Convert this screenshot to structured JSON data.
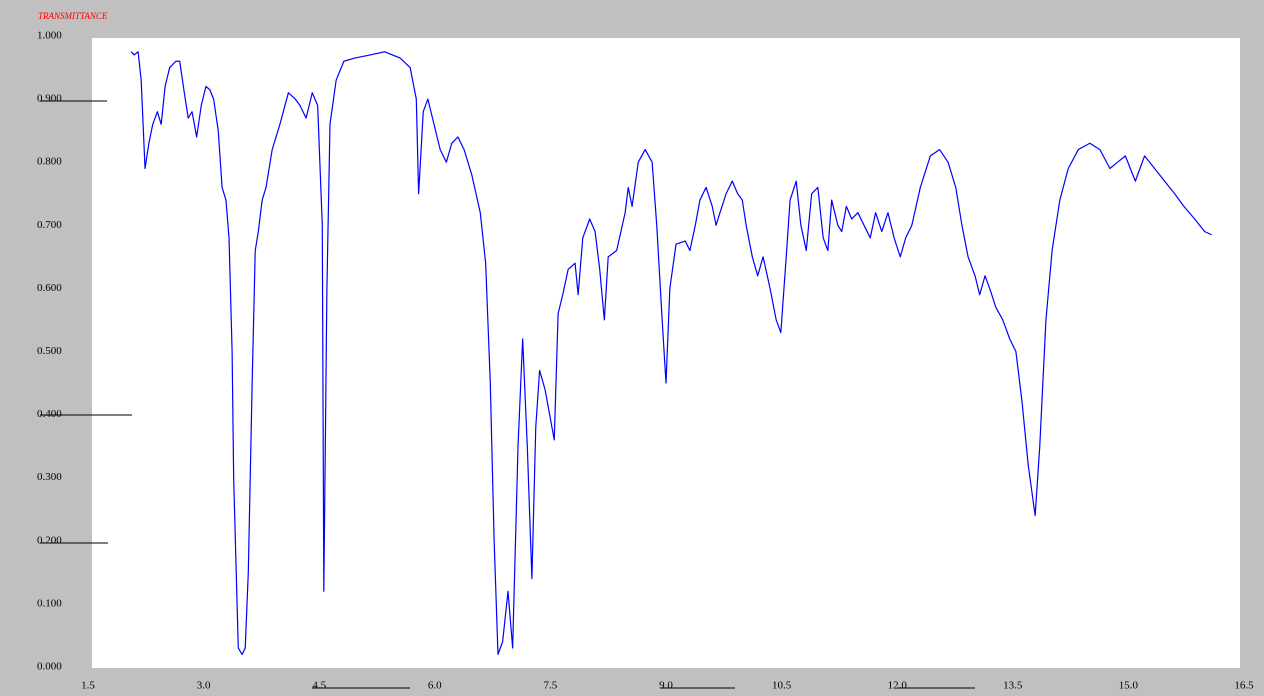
{
  "chart_data": {
    "type": "line",
    "title": "TRANSMITTANCE",
    "xlim": [
      1.5,
      16.5
    ],
    "xticks": [
      1.5,
      {
        "value": 3,
        "label": "3.0"
      },
      4.5,
      {
        "value": 6,
        "label": "6.0"
      },
      7.5,
      {
        "value": 9,
        "label": "9.0"
      },
      10.5,
      {
        "value": 12,
        "label": "12.0"
      },
      13.5,
      {
        "value": 15,
        "label": "15.0"
      },
      16.5
    ],
    "ylim": [
      0,
      1
    ],
    "yticks": [
      {
        "value": 0,
        "label": "0.000"
      },
      {
        "value": 0.1,
        "label": "0.100"
      },
      {
        "value": 0.2,
        "label": "0.200"
      },
      {
        "value": 0.3,
        "label": "0.300"
      },
      {
        "value": 0.4,
        "label": "0.400"
      },
      {
        "value": 0.5,
        "label": "0.500"
      },
      {
        "value": 0.6,
        "label": "0.600"
      },
      {
        "value": 0.7,
        "label": "0.700"
      },
      {
        "value": 0.8,
        "label": "0.800"
      },
      {
        "value": 0.9,
        "label": "0.900"
      },
      {
        "value": 1,
        "label": "1.000"
      }
    ],
    "grid": false,
    "color": "#0000ff",
    "x": [
      2.06,
      2.1,
      2.15,
      2.19,
      2.24,
      2.29,
      2.34,
      2.4,
      2.45,
      2.5,
      2.56,
      2.64,
      2.69,
      2.75,
      2.8,
      2.85,
      2.91,
      2.97,
      3.03,
      3.08,
      3.13,
      3.19,
      3.24,
      3.29,
      3.33,
      3.37,
      3.39,
      3.45,
      3.5,
      3.54,
      3.58,
      3.63,
      3.67,
      3.71,
      3.76,
      3.81,
      3.89,
      3.99,
      4.1,
      4.19,
      4.25,
      4.33,
      4.41,
      4.48,
      4.54,
      4.56,
      4.6,
      4.64,
      4.72,
      4.82,
      4.96,
      5.16,
      5.35,
      5.55,
      5.68,
      5.76,
      5.79,
      5.85,
      5.91,
      5.99,
      6.07,
      6.15,
      6.22,
      6.3,
      6.38,
      6.48,
      6.59,
      6.66,
      6.72,
      6.77,
      6.82,
      6.88,
      6.95,
      7.01,
      7.08,
      7.14,
      7.2,
      7.26,
      7.31,
      7.36,
      7.43,
      7.49,
      7.55,
      7.6,
      7.66,
      7.73,
      7.82,
      7.86,
      7.92,
      8.01,
      8.08,
      8.14,
      8.2,
      8.25,
      8.36,
      8.47,
      8.51,
      8.56,
      8.64,
      8.73,
      8.82,
      8.88,
      8.95,
      9.0,
      9.05,
      9.13,
      9.25,
      9.31,
      9.38,
      9.44,
      9.52,
      9.6,
      9.65,
      9.7,
      9.78,
      9.86,
      9.93,
      9.99,
      10.04,
      10.12,
      10.19,
      10.26,
      10.35,
      10.43,
      10.49,
      10.56,
      10.61,
      10.69,
      10.75,
      10.82,
      10.89,
      10.97,
      11.04,
      11.1,
      11.15,
      11.23,
      11.28,
      11.34,
      11.41,
      11.49,
      11.57,
      11.65,
      11.72,
      11.8,
      11.88,
      11.96,
      12.04,
      12.11,
      12.19,
      12.3,
      12.43,
      12.55,
      12.66,
      12.76,
      12.84,
      12.92,
      13.01,
      13.07,
      13.14,
      13.2,
      13.28,
      13.37,
      13.46,
      13.54,
      13.62,
      13.7,
      13.79,
      13.85,
      13.93,
      14.01,
      14.11,
      14.22,
      14.35,
      14.5,
      14.63,
      14.76,
      14.86,
      14.96,
      15.09,
      15.21,
      15.34,
      15.47,
      15.6,
      15.72,
      15.86,
      15.99,
      16.08
    ],
    "values": [
      0.975,
      0.97,
      0.975,
      0.93,
      0.79,
      0.83,
      0.86,
      0.88,
      0.86,
      0.92,
      0.95,
      0.96,
      0.96,
      0.91,
      0.87,
      0.88,
      0.84,
      0.89,
      0.92,
      0.915,
      0.9,
      0.85,
      0.76,
      0.74,
      0.68,
      0.5,
      0.3,
      0.03,
      0.02,
      0.03,
      0.15,
      0.45,
      0.66,
      0.69,
      0.74,
      0.76,
      0.82,
      0.86,
      0.91,
      0.9,
      0.89,
      0.87,
      0.91,
      0.89,
      0.7,
      0.12,
      0.6,
      0.86,
      0.93,
      0.96,
      0.965,
      0.97,
      0.975,
      0.965,
      0.95,
      0.9,
      0.75,
      0.88,
      0.9,
      0.86,
      0.82,
      0.8,
      0.83,
      0.84,
      0.82,
      0.78,
      0.72,
      0.64,
      0.45,
      0.2,
      0.02,
      0.04,
      0.12,
      0.03,
      0.35,
      0.52,
      0.35,
      0.14,
      0.38,
      0.47,
      0.44,
      0.4,
      0.36,
      0.56,
      0.59,
      0.63,
      0.64,
      0.59,
      0.68,
      0.71,
      0.69,
      0.63,
      0.55,
      0.65,
      0.66,
      0.72,
      0.76,
      0.73,
      0.8,
      0.82,
      0.8,
      0.7,
      0.55,
      0.45,
      0.6,
      0.67,
      0.675,
      0.66,
      0.7,
      0.74,
      0.76,
      0.73,
      0.7,
      0.72,
      0.75,
      0.77,
      0.75,
      0.74,
      0.7,
      0.65,
      0.62,
      0.65,
      0.6,
      0.55,
      0.53,
      0.65,
      0.74,
      0.77,
      0.7,
      0.66,
      0.75,
      0.76,
      0.68,
      0.66,
      0.74,
      0.7,
      0.69,
      0.73,
      0.71,
      0.72,
      0.7,
      0.68,
      0.72,
      0.69,
      0.72,
      0.68,
      0.65,
      0.68,
      0.7,
      0.76,
      0.81,
      0.82,
      0.8,
      0.76,
      0.7,
      0.65,
      0.62,
      0.59,
      0.62,
      0.6,
      0.57,
      0.55,
      0.52,
      0.5,
      0.42,
      0.32,
      0.24,
      0.35,
      0.55,
      0.66,
      0.74,
      0.79,
      0.82,
      0.83,
      0.82,
      0.79,
      0.8,
      0.81,
      0.77,
      0.81,
      0.79,
      0.77,
      0.75,
      0.73,
      0.71,
      0.69,
      0.685
    ]
  }
}
